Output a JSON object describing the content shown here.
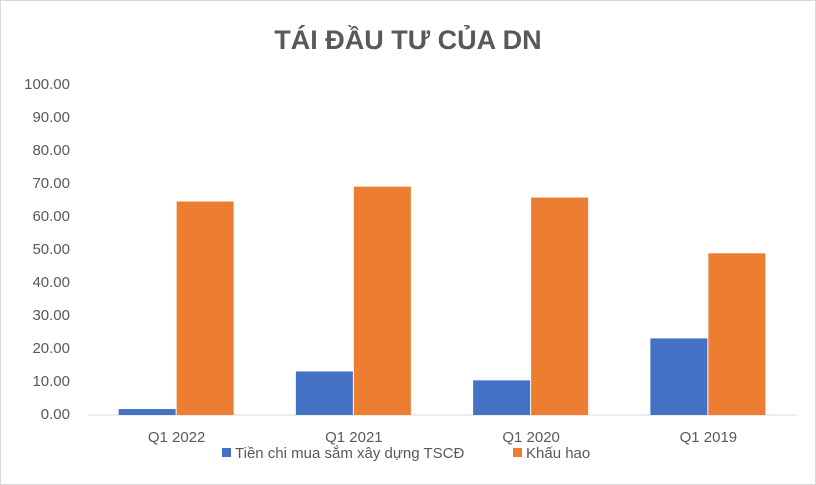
{
  "chart_data": {
    "type": "bar",
    "title": "TÁI ĐẦU TƯ CỦA DN",
    "categories": [
      "Q1 2022",
      "Q1 2021",
      "Q1 2020",
      "Q1 2019"
    ],
    "series": [
      {
        "name": "Tiền chi mua sắm xây dựng TSCĐ",
        "color": "#4472c4",
        "values": [
          1.8,
          13.2,
          10.5,
          23.2
        ]
      },
      {
        "name": "Khấu hao",
        "color": "#ed7d31",
        "values": [
          64.7,
          69.2,
          65.9,
          49.0
        ]
      }
    ],
    "ylim": [
      0,
      100
    ],
    "yticks": [
      {
        "value": 0,
        "label": "0.00"
      },
      {
        "value": 10,
        "label": "10.00"
      },
      {
        "value": 20,
        "label": "20.00"
      },
      {
        "value": 30,
        "label": "30.00"
      },
      {
        "value": 40,
        "label": "40.00"
      },
      {
        "value": 50,
        "label": "50.00"
      },
      {
        "value": 60,
        "label": "60.00"
      },
      {
        "value": 70,
        "label": "70.00"
      },
      {
        "value": 80,
        "label": "80.00"
      },
      {
        "value": 90,
        "label": "90.00"
      },
      {
        "value": 100,
        "label": "100.00"
      }
    ],
    "grid": false,
    "legend": "bottom"
  }
}
